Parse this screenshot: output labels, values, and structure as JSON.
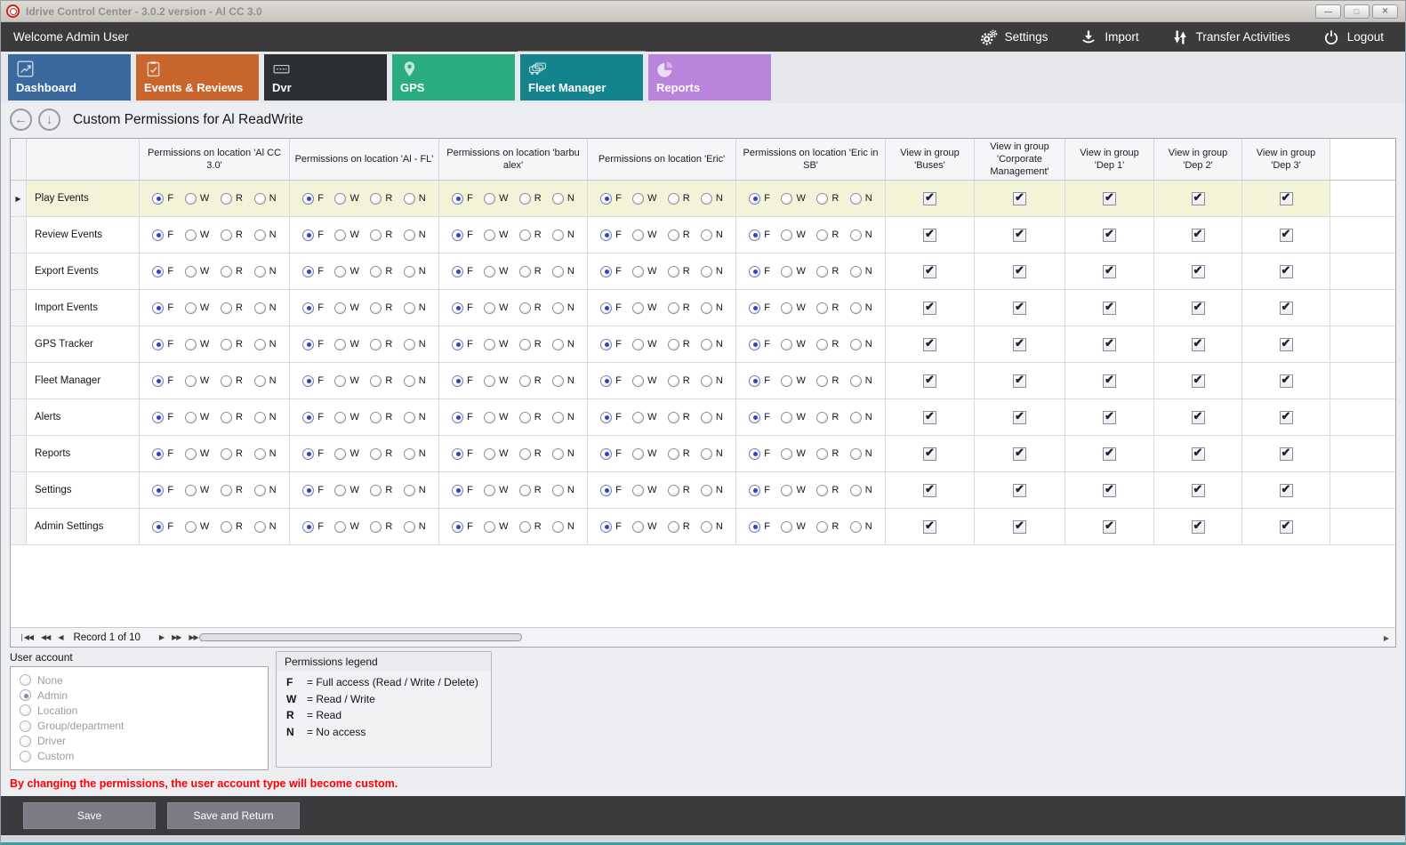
{
  "window": {
    "title": "Idrive Control Center - 3.0.2 version - Al CC 3.0",
    "controls": {
      "minimize": "—",
      "maximize": "□",
      "close": "✕"
    }
  },
  "topbar": {
    "welcome": "Welcome Admin User",
    "actions": [
      {
        "label": "Settings",
        "icon": "gears-icon"
      },
      {
        "label": "Import",
        "icon": "import-icon"
      },
      {
        "label": "Transfer Activities",
        "icon": "transfer-arrows-icon"
      },
      {
        "label": "Logout",
        "icon": "power-icon"
      }
    ]
  },
  "tabs": [
    {
      "label": "Dashboard",
      "color": "#3a699e",
      "icon": "line-chart-icon",
      "selected": false
    },
    {
      "label": "Events & Reviews",
      "color": "#c8662e",
      "icon": "clipboard-check-icon",
      "selected": false
    },
    {
      "label": "Dvr",
      "color": "#2b2e33",
      "icon": "dvr-icon",
      "selected": false
    },
    {
      "label": "GPS",
      "color": "#2aab80",
      "icon": "map-pin-icon",
      "selected": false
    },
    {
      "label": "Fleet Manager",
      "color": "#13848e",
      "icon": "fleet-vehicles-icon",
      "selected": true
    },
    {
      "label": "Reports",
      "color": "#ba84dd",
      "icon": "pie-chart-icon",
      "selected": false
    }
  ],
  "page": {
    "title": "Custom Permissions for Al ReadWrite"
  },
  "grid": {
    "permission_columns": [
      "Permissions on location 'Al CC 3.0'",
      "Permissions on location 'Al - FL'",
      "Permissions on location 'barbu alex'",
      "Permissions on location 'Eric'",
      "Permissions on location 'Eric in SB'"
    ],
    "group_columns": [
      "View in group 'Buses'",
      "View in group 'Corporate Management'",
      "View in group 'Dep 1'",
      "View in group 'Dep 2'",
      "View in group 'Dep 3'"
    ],
    "radio_options": [
      "F",
      "W",
      "R",
      "N"
    ],
    "rows": [
      {
        "label": "Play Events",
        "selected": true,
        "permissions": [
          "F",
          "F",
          "F",
          "F",
          "F"
        ],
        "groups": [
          true,
          true,
          true,
          true,
          true
        ]
      },
      {
        "label": "Review Events",
        "selected": false,
        "permissions": [
          "F",
          "F",
          "F",
          "F",
          "F"
        ],
        "groups": [
          true,
          true,
          true,
          true,
          true
        ]
      },
      {
        "label": "Export Events",
        "selected": false,
        "permissions": [
          "F",
          "F",
          "F",
          "F",
          "F"
        ],
        "groups": [
          true,
          true,
          true,
          true,
          true
        ]
      },
      {
        "label": "Import Events",
        "selected": false,
        "permissions": [
          "F",
          "F",
          "F",
          "F",
          "F"
        ],
        "groups": [
          true,
          true,
          true,
          true,
          true
        ]
      },
      {
        "label": "GPS Tracker",
        "selected": false,
        "permissions": [
          "F",
          "F",
          "F",
          "F",
          "F"
        ],
        "groups": [
          true,
          true,
          true,
          true,
          true
        ]
      },
      {
        "label": "Fleet Manager",
        "selected": false,
        "permissions": [
          "F",
          "F",
          "F",
          "F",
          "F"
        ],
        "groups": [
          true,
          true,
          true,
          true,
          true
        ]
      },
      {
        "label": "Alerts",
        "selected": false,
        "permissions": [
          "F",
          "F",
          "F",
          "F",
          "F"
        ],
        "groups": [
          true,
          true,
          true,
          true,
          true
        ]
      },
      {
        "label": "Reports",
        "selected": false,
        "permissions": [
          "F",
          "F",
          "F",
          "F",
          "F"
        ],
        "groups": [
          true,
          true,
          true,
          true,
          true
        ]
      },
      {
        "label": "Settings",
        "selected": false,
        "permissions": [
          "F",
          "F",
          "F",
          "F",
          "F"
        ],
        "groups": [
          true,
          true,
          true,
          true,
          true
        ]
      },
      {
        "label": "Admin Settings",
        "selected": false,
        "permissions": [
          "F",
          "F",
          "F",
          "F",
          "F"
        ],
        "groups": [
          true,
          true,
          true,
          true,
          true
        ]
      }
    ],
    "pager": {
      "text": "Record 1 of 10"
    }
  },
  "user_account": {
    "title": "User account",
    "options": [
      {
        "label": "None",
        "checked": false
      },
      {
        "label": "Admin",
        "checked": true
      },
      {
        "label": "Location",
        "checked": false
      },
      {
        "label": "Group/department",
        "checked": false
      },
      {
        "label": "Driver",
        "checked": false
      },
      {
        "label": "Custom",
        "checked": false
      }
    ]
  },
  "legend": {
    "title": "Permissions legend",
    "items": [
      {
        "key": "F",
        "value": "= Full access (Read / Write / Delete)"
      },
      {
        "key": "W",
        "value": "= Read / Write"
      },
      {
        "key": "R",
        "value": "= Read"
      },
      {
        "key": "N",
        "value": "= No access"
      }
    ]
  },
  "warning": "By changing the permissions, the user account type will become custom.",
  "footer": {
    "save": "Save",
    "save_return": "Save and Return"
  }
}
